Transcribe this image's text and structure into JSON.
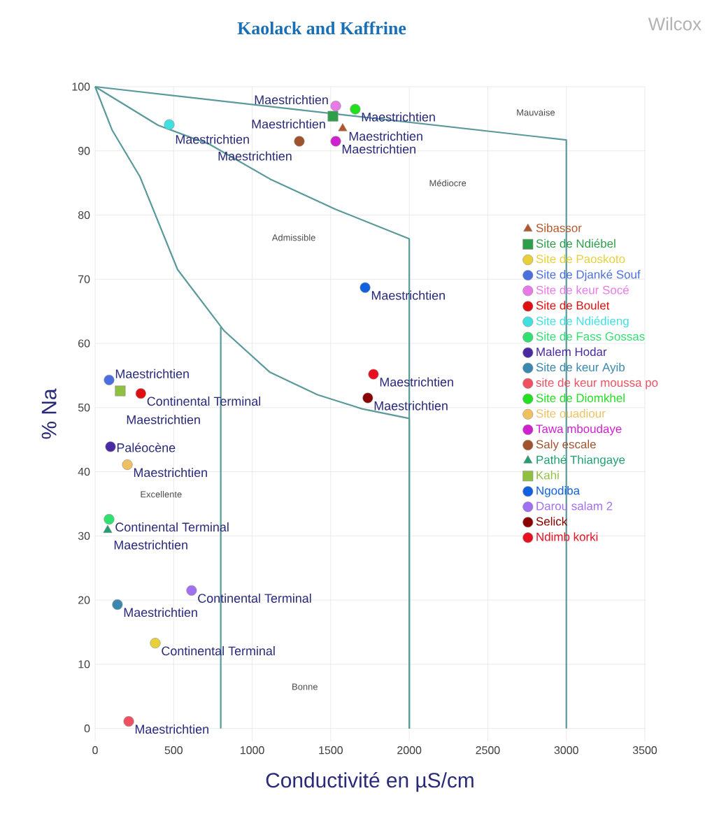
{
  "chart_data": {
    "type": "scatter",
    "title": "Kaolack and Kaffrine",
    "subtitle": "Wilcox",
    "xlabel": "Conductivité en µS/cm",
    "ylabel": "% Na",
    "xlim": [
      0,
      3500
    ],
    "ylim": [
      -2,
      100
    ],
    "xticks": [
      0,
      500,
      1000,
      1500,
      2000,
      2500,
      3000,
      3500
    ],
    "yticks": [
      0,
      10,
      20,
      30,
      40,
      50,
      60,
      70,
      80,
      90,
      100
    ],
    "grid": true,
    "legend": "right",
    "annotations": [
      "Excellente",
      "Bonne",
      "Admissible",
      "Médiocre",
      "Mauvaise"
    ],
    "series": [
      {
        "type": "line",
        "color": "#5a9a9a",
        "marker": "none",
        "x": [
          0,
          3000,
          3000
        ],
        "values": [
          100,
          91.7,
          0
        ]
      },
      {
        "type": "line",
        "color": "#5a9a9a",
        "marker": "none",
        "x": [
          0,
          400,
          730,
          1115,
          1530,
          2000,
          2000
        ],
        "values": [
          100,
          94,
          91,
          85.6,
          80.9,
          76.3,
          0
        ]
      },
      {
        "type": "line",
        "color": "#5a9a9a",
        "marker": "none",
        "x": [
          0,
          107,
          285,
          525,
          820,
          1113,
          1416,
          1700,
          2000,
          2000
        ],
        "values": [
          100,
          93.3,
          86,
          71.5,
          62,
          55.5,
          52,
          49.8,
          48.3,
          0
        ]
      },
      {
        "type": "line",
        "color": "#5a9a9a",
        "marker": "none",
        "x": [
          800,
          800
        ],
        "values": [
          62.5,
          0
        ]
      },
      {
        "name": "Sibassor",
        "color": "#b5562a",
        "marker": "triangle",
        "x": [
          1576
        ],
        "values": [
          93.5
        ],
        "value_labels": [
          "Maestrichtien"
        ]
      },
      {
        "name": "Site de Ndiébel",
        "color": "#2e9e4a",
        "marker": "square",
        "x": [
          1514
        ],
        "values": [
          95.4
        ],
        "value_labels": [
          "Maestrichtien"
        ]
      },
      {
        "name": "Site de Paoskoto",
        "color": "#e8d038",
        "marker": "circle",
        "x": [
          383
        ],
        "values": [
          13.3
        ],
        "value_labels": [
          "Continental Terminal"
        ]
      },
      {
        "name": "Site de Djanké Souf",
        "color": "#4c6fe0",
        "marker": "circle",
        "x": [
          89
        ],
        "values": [
          54.3
        ],
        "value_labels": [
          "Maestrichtien"
        ]
      },
      {
        "name": "Site de keur Socé",
        "color": "#e87ae8",
        "marker": "circle",
        "x": [
          1532
        ],
        "values": [
          97
        ],
        "value_labels": [
          "Maestrichtien"
        ]
      },
      {
        "name": "Site de Boulet",
        "color": "#e01010",
        "marker": "circle",
        "x": [
          291
        ],
        "values": [
          52.2
        ],
        "value_labels": [
          "Continental Terminal"
        ]
      },
      {
        "name": "Site de Ndiédieng",
        "color": "#40e0e0",
        "marker": "circle",
        "x": [
          472
        ],
        "values": [
          94.1
        ],
        "value_labels": [
          "Maestrichtien"
        ]
      },
      {
        "name": "Site de Fass Gossas",
        "color": "#30e070",
        "marker": "circle",
        "x": [
          89
        ],
        "values": [
          32.6
        ],
        "value_labels": [
          "Continental Terminal"
        ]
      },
      {
        "name": "Malem Hodar",
        "color": "#4a2aa0",
        "marker": "circle",
        "x": [
          98
        ],
        "values": [
          43.9
        ],
        "value_labels": [
          "Paléocène"
        ]
      },
      {
        "name": "Site de keur Ayib",
        "color": "#3a88b0",
        "marker": "circle",
        "x": [
          142
        ],
        "values": [
          19.3
        ],
        "value_labels": [
          "Maestrichtien"
        ]
      },
      {
        "name": "site de keur  moussa po",
        "color": "#f05060",
        "marker": "circle",
        "x": [
          214
        ],
        "values": [
          1.1
        ],
        "value_labels": [
          "Maestrichtien"
        ]
      },
      {
        "name": "Site de Diomkhel",
        "color": "#20e020",
        "marker": "circle",
        "x": [
          1656
        ],
        "values": [
          96.5
        ],
        "value_labels": [
          "Maestrichtien"
        ]
      },
      {
        "name": "Site ouadiour",
        "color": "#f0c060",
        "marker": "circle",
        "x": [
          205
        ],
        "values": [
          41.1
        ],
        "value_labels": [
          "Maestrichtien"
        ]
      },
      {
        "name": "Tawa mboudaye",
        "color": "#d020d0",
        "marker": "circle",
        "x": [
          1532
        ],
        "values": [
          91.5
        ],
        "value_labels": [
          "Maestrichtien"
        ]
      },
      {
        "name": "Saly escale",
        "color": "#a0522d",
        "marker": "circle",
        "x": [
          1300
        ],
        "values": [
          91.5
        ],
        "value_labels": [
          "Maestrichtien"
        ]
      },
      {
        "name": "Pathé Thiangaye",
        "color": "#20a070",
        "marker": "triangle",
        "x": [
          80
        ],
        "values": [
          30.9
        ],
        "value_labels": [
          "Maestrichtien"
        ]
      },
      {
        "name": "Kahi",
        "color": "#90c040",
        "marker": "square",
        "x": [
          160
        ],
        "values": [
          52.6
        ],
        "value_labels": [
          "Maestrichtien"
        ]
      },
      {
        "name": "Ngodiba",
        "color": "#1060e0",
        "marker": "circle",
        "x": [
          1719
        ],
        "values": [
          68.7
        ],
        "value_labels": [
          "Maestrichtien"
        ]
      },
      {
        "name": "Darou salam 2",
        "color": "#a070f0",
        "marker": "circle",
        "x": [
          614
        ],
        "values": [
          21.5
        ],
        "value_labels": [
          "Continental Terminal"
        ]
      },
      {
        "name": "Selick",
        "color": "#8b0000",
        "marker": "circle",
        "x": [
          1736
        ],
        "values": [
          51.5
        ],
        "value_labels": [
          "Maestrichtien"
        ]
      },
      {
        "name": "Ndimb korki",
        "color": "#e81020",
        "marker": "circle",
        "x": [
          1772
        ],
        "values": [
          55.2
        ],
        "value_labels": [
          "Maestrichtien"
        ]
      }
    ]
  }
}
